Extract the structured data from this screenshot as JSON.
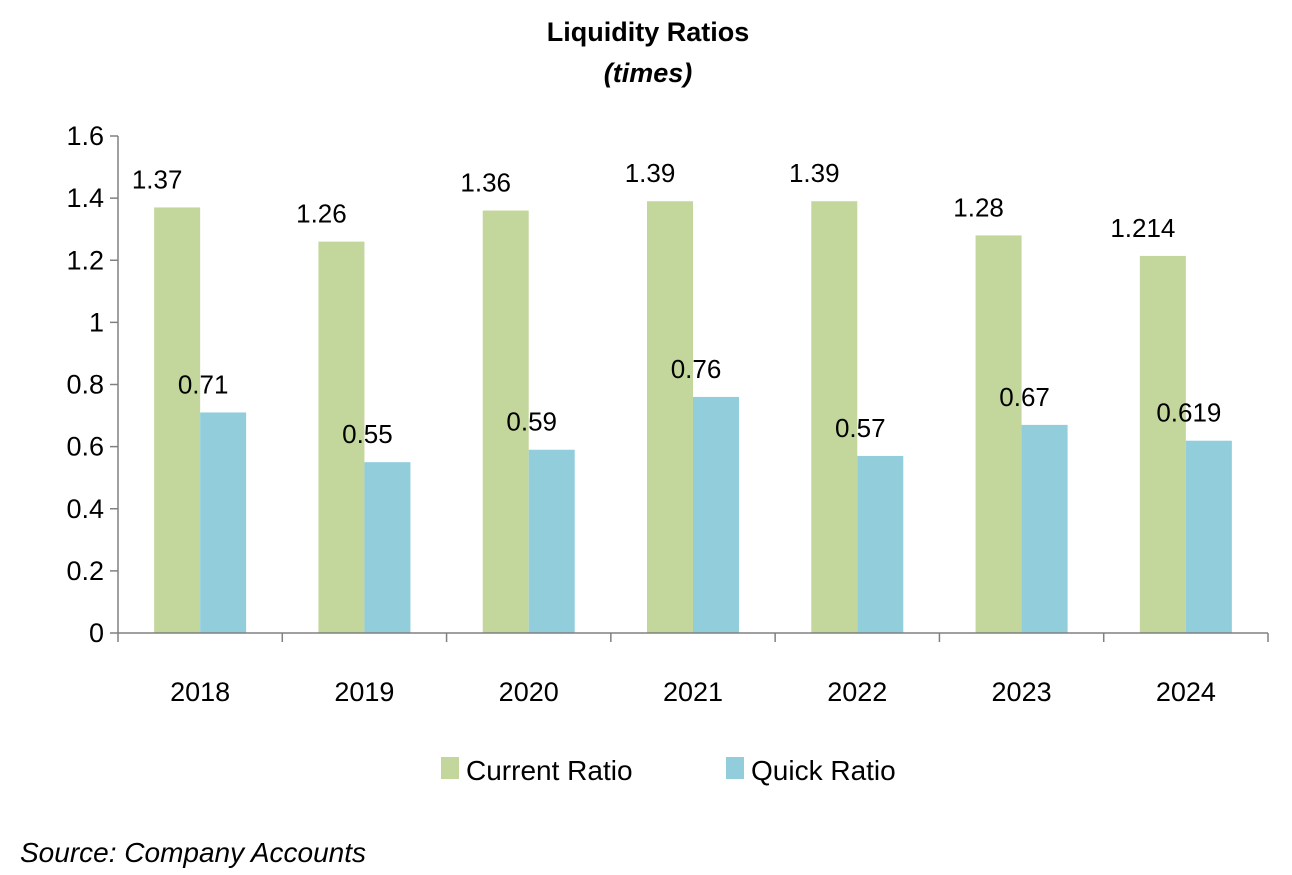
{
  "chart_data": {
    "type": "bar",
    "title": "Liquidity Ratios",
    "subtitle": "(times)",
    "categories": [
      "2018",
      "2019",
      "2020",
      "2021",
      "2022",
      "2023",
      "2024"
    ],
    "series": [
      {
        "name": "Current Ratio",
        "color": "#c3d69b",
        "values": [
          1.37,
          1.26,
          1.36,
          1.39,
          1.39,
          1.28,
          1.214
        ],
        "labels": [
          "1.37",
          "1.26",
          "1.36",
          "1.39",
          "1.39",
          "1.28",
          "1.214"
        ]
      },
      {
        "name": "Quick Ratio",
        "color": "#92cddc",
        "values": [
          0.71,
          0.55,
          0.59,
          0.76,
          0.57,
          0.67,
          0.619
        ],
        "labels": [
          "0.71",
          "0.55",
          "0.59",
          "0.76",
          "0.57",
          "0.67",
          "0.619"
        ]
      }
    ],
    "ylim": [
      0,
      1.6
    ],
    "yticks": [
      0,
      0.2,
      0.4,
      0.6,
      0.8,
      1,
      1.2,
      1.4,
      1.6
    ],
    "ytick_labels": [
      "0",
      "0.2",
      "0.4",
      "0.6",
      "0.8",
      "1",
      "1.2",
      "1.4",
      "1.6"
    ],
    "grid": false,
    "legend_position": "bottom"
  },
  "source": "Source: Company Accounts"
}
